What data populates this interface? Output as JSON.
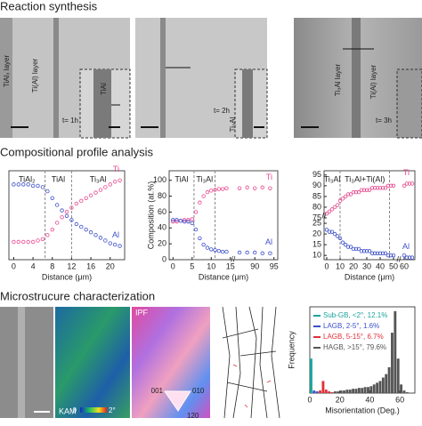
{
  "sections": [
    "Reaction synthesis",
    "Compositional profile analysis",
    "Microstrucure characterization"
  ],
  "micrographs": [
    {
      "labels": [
        "TiAl₃ layer",
        "Ti(Al) layer",
        "TiAl"
      ],
      "time": "t= 1h"
    },
    {
      "labels": [
        "Ti₃Al"
      ],
      "time": "t= 2h"
    },
    {
      "labels": [
        "Ti₃Al layer",
        "Ti(Al) layer"
      ],
      "time": "t= 3h"
    }
  ],
  "maps": {
    "kam": "KAM",
    "kam_min": "0",
    "kam_max": "2°",
    "ipf": "IPF",
    "ipf_corners": [
      "001",
      "010",
      "120"
    ]
  },
  "chart_data": [
    {
      "type": "scatter",
      "xlabel": "Distance (μm)",
      "phases": [
        "TiAl₂",
        "TiAl",
        "Ti₃Al"
      ],
      "boundaries": [
        6.5,
        12
      ],
      "xlim": [
        -1,
        23
      ],
      "xticks": [
        0,
        4,
        8,
        12,
        16,
        20
      ],
      "ylim": [
        15,
        80
      ],
      "x": [
        0,
        1,
        2,
        3,
        4,
        5,
        6,
        7,
        8,
        9,
        10,
        11,
        12,
        13,
        14,
        15,
        16,
        17,
        18,
        19,
        20,
        21,
        22
      ],
      "series": [
        {
          "name": "Ti",
          "color": "#e8488f",
          "values": [
            28,
            28,
            28,
            28,
            28,
            29,
            30,
            33,
            37,
            42,
            46,
            50,
            53,
            56,
            58,
            60,
            62,
            64,
            66,
            68,
            70,
            72,
            73
          ]
        },
        {
          "name": "Al",
          "color": "#3b4fc9",
          "values": [
            70,
            70,
            70,
            70,
            69,
            69,
            68,
            65,
            60,
            55,
            51,
            47,
            44,
            41,
            39,
            37,
            35,
            33,
            31,
            29,
            27,
            26,
            25
          ]
        }
      ]
    },
    {
      "type": "scatter",
      "xlabel": "Distance (μm)",
      "ylabel": "Composition (at.%)",
      "phases": [
        "TiAl",
        "Ti₃Al"
      ],
      "boundaries": [
        5.5,
        11
      ],
      "xlim": [
        -1,
        96
      ],
      "xbreak": [
        15,
        85
      ],
      "xticks": [
        0,
        5,
        10,
        15,
        90,
        95
      ],
      "ylim": [
        0,
        112
      ],
      "yticks": [
        0,
        20,
        40,
        60,
        80,
        100
      ],
      "x": [
        0,
        1,
        2,
        3,
        4,
        5,
        6,
        7,
        8,
        9,
        10,
        11,
        12,
        13,
        14,
        86,
        88,
        90,
        92,
        94
      ],
      "series": [
        {
          "name": "Ti",
          "color": "#e8488f",
          "values": [
            48,
            48,
            49,
            50,
            50,
            51,
            60,
            72,
            80,
            85,
            87,
            88,
            89,
            89,
            90,
            90,
            91,
            90,
            91,
            90
          ]
        },
        {
          "name": "Al",
          "color": "#3b4fc9",
          "values": [
            50,
            50,
            49,
            48,
            48,
            46,
            38,
            27,
            19,
            15,
            13,
            12,
            11,
            10,
            10,
            9,
            9,
            9,
            8,
            8
          ]
        }
      ]
    },
    {
      "type": "scatter",
      "xlabel": "Distance (μm)",
      "phases": [
        "Ti₃Al",
        "Ti₃Al+Ti(Al)"
      ],
      "boundaries": [
        10,
        47
      ],
      "xlim": [
        -2,
        68
      ],
      "xbreak": [
        52,
        58
      ],
      "xticks": [
        0,
        10,
        20,
        30,
        40,
        50,
        60
      ],
      "ylim": [
        8,
        97
      ],
      "ybreak": [
        27,
        72
      ],
      "yticks": [
        10,
        15,
        20,
        25,
        75,
        80,
        85,
        90,
        95
      ],
      "x": [
        0,
        2,
        4,
        6,
        8,
        10,
        12,
        14,
        16,
        18,
        20,
        22,
        24,
        26,
        28,
        30,
        32,
        34,
        36,
        38,
        40,
        42,
        44,
        46,
        48,
        50,
        60,
        62,
        64,
        66
      ],
      "series": [
        {
          "name": "Ti",
          "color": "#e8488f",
          "values": [
            77,
            78,
            79,
            80,
            81,
            83,
            84,
            85,
            86,
            86,
            87,
            87,
            87,
            88,
            88,
            88,
            88,
            89,
            89,
            89,
            89,
            89,
            89,
            90,
            90,
            90,
            90,
            91,
            91,
            91
          ]
        },
        {
          "name": "Al",
          "color": "#3b4fc9",
          "values": [
            22,
            21,
            21,
            20,
            19,
            18,
            16,
            15,
            14,
            14,
            13,
            13,
            13,
            12,
            12,
            12,
            12,
            11,
            11,
            11,
            11,
            11,
            11,
            10,
            10,
            10,
            10,
            9,
            9,
            9
          ]
        }
      ]
    },
    {
      "type": "histogram",
      "xlabel": "Misorientation (Deg.)",
      "ylabel": "Frequency",
      "xlim": [
        0,
        70
      ],
      "xticks": [
        0,
        20,
        40,
        60
      ],
      "ylim": [
        0,
        100
      ],
      "bins": [
        0,
        2,
        4,
        6,
        8,
        10,
        12,
        14,
        16,
        18,
        20,
        22,
        24,
        26,
        28,
        30,
        32,
        34,
        36,
        38,
        40,
        42,
        44,
        46,
        48,
        50,
        52,
        54,
        56,
        58,
        60,
        62,
        64,
        66
      ],
      "counts": [
        40,
        3,
        2,
        3,
        14,
        4,
        2,
        1,
        2,
        2,
        3,
        3,
        4,
        4,
        5,
        5,
        6,
        6,
        7,
        7,
        8,
        10,
        12,
        14,
        18,
        22,
        30,
        70,
        95,
        40,
        10,
        3,
        1
      ],
      "bar_colors": [
        "#1aa39a",
        "#3b4fc9",
        "#3b4fc9",
        "#e0303a",
        "#e0303a",
        "#e0303a",
        "#e0303a",
        "#e0303a",
        "#555",
        "#555",
        "#555",
        "#555",
        "#555",
        "#555",
        "#555",
        "#555",
        "#555",
        "#555",
        "#555",
        "#555",
        "#555",
        "#555",
        "#555",
        "#555",
        "#555",
        "#555",
        "#555",
        "#555",
        "#555",
        "#555",
        "#555",
        "#555",
        "#555"
      ],
      "legend": [
        {
          "name": "Sub-GB, <2°, 12.1%",
          "color": "#1aa39a"
        },
        {
          "name": "LAGB, 2-5°, 1.6%",
          "color": "#3b4fc9"
        },
        {
          "name": "LAGB, 5-15°, 6.7%",
          "color": "#e0303a"
        },
        {
          "name": "HAGB, >15°, 79.6%",
          "color": "#555"
        }
      ]
    }
  ]
}
